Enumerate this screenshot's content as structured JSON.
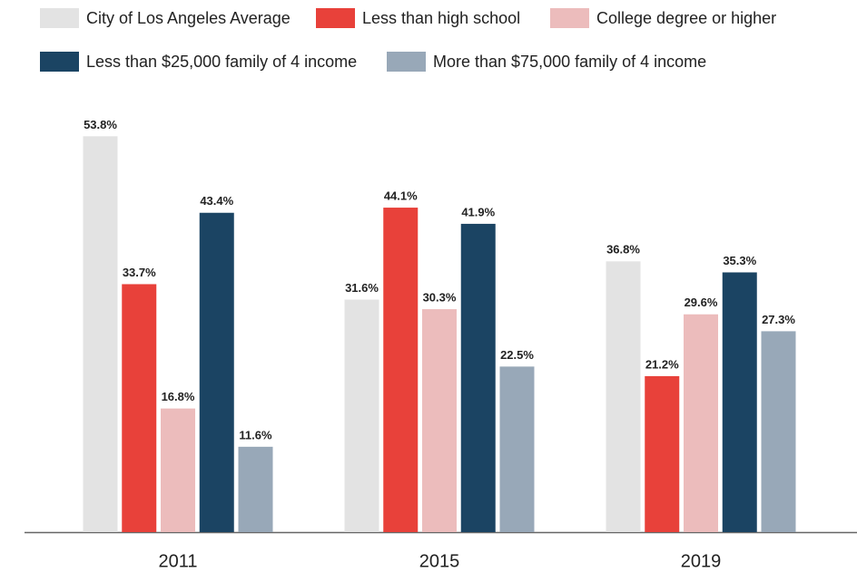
{
  "chart_data": {
    "type": "bar",
    "categories": [
      "2011",
      "2015",
      "2019"
    ],
    "series": [
      {
        "name": "City of Los Angeles Average",
        "color": "#e3e3e3",
        "values": [
          53.8,
          31.6,
          36.8
        ],
        "value_labels": [
          "53.8%",
          "31.6%",
          "36.8%"
        ]
      },
      {
        "name": "Less than high school",
        "color": "#e8413a",
        "values": [
          33.7,
          44.1,
          21.2
        ],
        "value_labels": [
          "33.7%",
          "44.1%",
          "21.2%"
        ]
      },
      {
        "name": "College degree or higher",
        "color": "#ecbcbc",
        "values": [
          16.8,
          30.3,
          29.6
        ],
        "value_labels": [
          "16.8%",
          "30.3%",
          "29.6%"
        ]
      },
      {
        "name": "Less than $25,000 family of 4 income",
        "color": "#1b4463",
        "values": [
          43.4,
          41.9,
          35.3
        ],
        "value_labels": [
          "43.4%",
          "41.9%",
          "35.3%"
        ]
      },
      {
        "name": "More than $75,000 family of 4 income",
        "color": "#98a8b8",
        "values": [
          11.6,
          22.5,
          27.3
        ],
        "value_labels": [
          "11.6%",
          "22.5%",
          "27.3%"
        ]
      }
    ],
    "ylim": [
      0,
      60
    ]
  }
}
